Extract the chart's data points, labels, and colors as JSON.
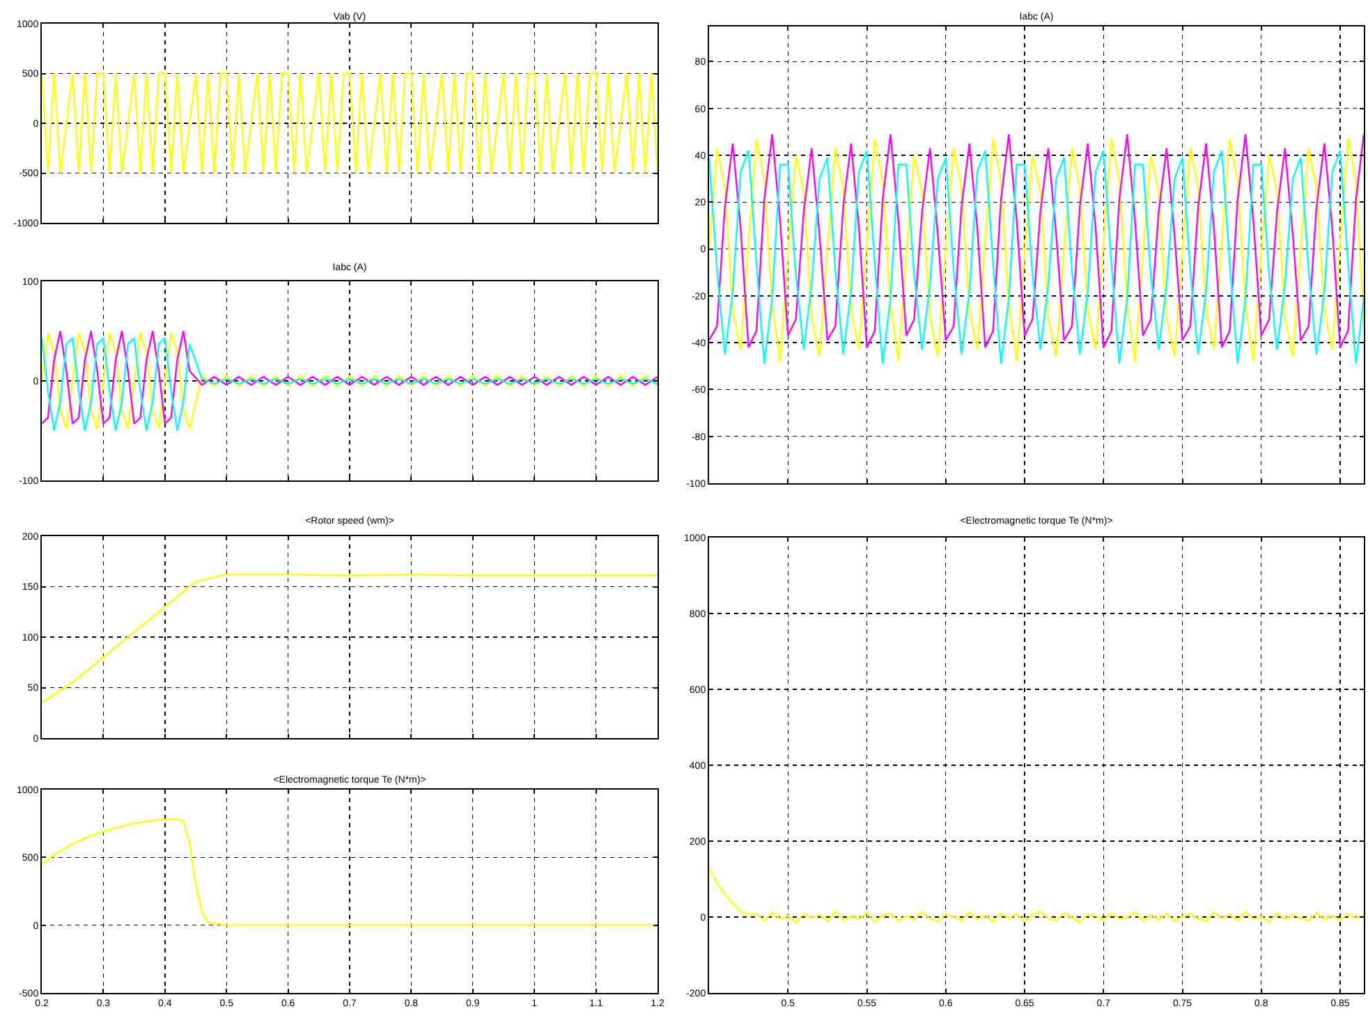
{
  "chart_data": [
    {
      "type": "line",
      "title": "Vab (V)",
      "xlim": [
        0.2,
        1.2
      ],
      "xticks": [
        0.2,
        0.3,
        0.4,
        0.5,
        0.6,
        0.7,
        0.8,
        0.9,
        1,
        1.1,
        1.2
      ],
      "ylim": [
        -1000,
        1000
      ],
      "yticks": [
        -1000,
        -500,
        0,
        500,
        1000
      ],
      "grid": true,
      "tick_labels": "y",
      "x": [
        0.2,
        0.21,
        0.22,
        0.23,
        0.24,
        0.25,
        0.26,
        0.27,
        0.28,
        0.29,
        0.3,
        0.31,
        0.32,
        0.33,
        0.34,
        0.35,
        0.36,
        0.37,
        0.38,
        0.39,
        0.4,
        0.41,
        0.42,
        0.43,
        0.44,
        0.45,
        0.46,
        0.47,
        0.48,
        0.49,
        0.5,
        0.51,
        0.52,
        0.53,
        0.54,
        0.55,
        0.56,
        0.57,
        0.58,
        0.59,
        0.6,
        0.61,
        0.62,
        0.63,
        0.64,
        0.65,
        0.66,
        0.67,
        0.68,
        0.69,
        0.7,
        0.71,
        0.72,
        0.73,
        0.74,
        0.75,
        0.76,
        0.77,
        0.78,
        0.79,
        0.8,
        0.81,
        0.82,
        0.83,
        0.84,
        0.85,
        0.86,
        0.87,
        0.88,
        0.89,
        0.9,
        0.91,
        0.92,
        0.93,
        0.94,
        0.95,
        0.96,
        0.97,
        0.98,
        0.99,
        1,
        1.01,
        1.02,
        1.03,
        1.04,
        1.05,
        1.06,
        1.07,
        1.08,
        1.09,
        1.1,
        1.11,
        1.12,
        1.13,
        1.14,
        1.15,
        1.16,
        1.17,
        1.18,
        1.19,
        1.2
      ],
      "series": [
        {
          "color": "#ffff00",
          "values": [
            500,
            -500,
            500,
            -500,
            0,
            500,
            -500,
            500,
            -500,
            500,
            500,
            -500,
            500,
            -500,
            0,
            500,
            -500,
            500,
            -500,
            500,
            500,
            -500,
            500,
            -500,
            0,
            500,
            -500,
            500,
            -500,
            500,
            500,
            -500,
            500,
            -500,
            0,
            500,
            -500,
            500,
            -500,
            500,
            500,
            -500,
            500,
            -500,
            0,
            500,
            -500,
            500,
            -500,
            500,
            500,
            -500,
            500,
            -500,
            0,
            500,
            -500,
            500,
            -500,
            500,
            500,
            -500,
            500,
            -500,
            0,
            500,
            -500,
            500,
            -500,
            500,
            500,
            -500,
            500,
            -500,
            0,
            500,
            -500,
            500,
            -500,
            500,
            500,
            -500,
            500,
            -500,
            0,
            500,
            -500,
            500,
            -500,
            500,
            500,
            -500,
            500,
            -500,
            0,
            500,
            -500,
            500,
            -500,
            500,
            -500
          ]
        }
      ]
    },
    {
      "type": "line",
      "title": "Iabc (A)",
      "xlim": [
        0.2,
        1.2
      ],
      "xticks": [
        0.2,
        0.3,
        0.4,
        0.5,
        0.6,
        0.7,
        0.8,
        0.9,
        1,
        1.1,
        1.2
      ],
      "ylim": [
        -100,
        100
      ],
      "yticks": [
        -100,
        0,
        100
      ],
      "grid": true,
      "tick_labels": "y",
      "x": [
        0.2,
        0.21,
        0.22,
        0.23,
        0.24,
        0.25,
        0.26,
        0.27,
        0.28,
        0.29,
        0.3,
        0.31,
        0.32,
        0.33,
        0.34,
        0.35,
        0.36,
        0.37,
        0.38,
        0.39,
        0.4,
        0.41,
        0.42,
        0.43,
        0.44,
        0.46,
        0.48,
        0.5,
        0.52,
        0.54,
        0.56,
        0.58,
        0.6,
        0.62,
        0.64,
        0.66,
        0.68,
        0.7,
        0.72,
        0.74,
        0.76,
        0.78,
        0.8,
        0.82,
        0.84,
        0.86,
        0.88,
        0.9,
        0.92,
        0.94,
        0.96,
        0.98,
        1,
        1.02,
        1.04,
        1.06,
        1.08,
        1.1,
        1.12,
        1.14,
        1.16,
        1.18,
        1.2
      ],
      "series": [
        {
          "color": "#ffff00",
          "values": [
            0,
            48,
            29,
            -29,
            -48,
            0,
            48,
            29,
            -29,
            -48,
            0,
            48,
            29,
            -29,
            -48,
            0,
            48,
            29,
            -29,
            -48,
            0,
            48,
            29,
            -29,
            -48,
            5,
            -5,
            5,
            -5,
            5,
            -5,
            5,
            -5,
            5,
            -5,
            5,
            -5,
            5,
            -5,
            5,
            -5,
            5,
            -5,
            5,
            -5,
            5,
            -5,
            5,
            -5,
            5,
            -5,
            5,
            -5,
            5,
            -5,
            5,
            -5,
            5,
            -5,
            5,
            -5,
            5,
            -5
          ]
        },
        {
          "color": "#ff00ff",
          "values": [
            -43,
            -37,
            21,
            50,
            10,
            -43,
            -37,
            21,
            50,
            10,
            -43,
            -37,
            21,
            50,
            10,
            -43,
            -37,
            21,
            50,
            10,
            -43,
            -37,
            21,
            50,
            10,
            -4,
            4,
            -4,
            4,
            -4,
            4,
            -4,
            4,
            -4,
            4,
            -4,
            4,
            -4,
            4,
            -4,
            4,
            -4,
            4,
            -4,
            4,
            -4,
            4,
            -4,
            4,
            -4,
            4,
            -4,
            4,
            -4,
            4,
            -4,
            4,
            -4,
            4,
            -4,
            4,
            -4,
            4
          ]
        },
        {
          "color": "#00ffff",
          "values": [
            43,
            -10,
            -50,
            -21,
            37,
            43,
            -10,
            -50,
            -21,
            37,
            43,
            -10,
            -50,
            -21,
            37,
            43,
            -10,
            -50,
            -21,
            37,
            43,
            -10,
            -50,
            -21,
            37,
            2,
            -3,
            2,
            -3,
            2,
            -3,
            2,
            -3,
            2,
            -3,
            2,
            -3,
            2,
            -3,
            2,
            -3,
            2,
            -3,
            2,
            -3,
            2,
            -3,
            2,
            -3,
            2,
            -3,
            2,
            -3,
            2,
            -3,
            2,
            -3,
            2,
            -3,
            2,
            -3,
            2,
            -3
          ]
        }
      ]
    },
    {
      "type": "line",
      "title": "<Rotor speed (wm)>",
      "xlim": [
        0.2,
        1.2
      ],
      "xticks": [
        0.2,
        0.3,
        0.4,
        0.5,
        0.6,
        0.7,
        0.8,
        0.9,
        1,
        1.1,
        1.2
      ],
      "ylim": [
        0,
        200
      ],
      "yticks": [
        0,
        50,
        100,
        150,
        200
      ],
      "grid": true,
      "tick_labels": "y",
      "x": [
        0.2,
        0.25,
        0.3,
        0.35,
        0.4,
        0.45,
        0.5,
        0.6,
        0.7,
        0.8,
        0.9,
        1,
        1.1,
        1.2
      ],
      "series": [
        {
          "color": "#ffff00",
          "values": [
            35,
            55,
            80,
            105,
            130,
            155,
            162,
            162,
            161,
            162,
            161,
            161,
            161,
            161
          ]
        }
      ]
    },
    {
      "type": "line",
      "title": "<Electromagnetic torque Te (N*m)>",
      "xlim": [
        0.2,
        1.2
      ],
      "xticks": [
        0.2,
        0.3,
        0.4,
        0.5,
        0.6,
        0.7,
        0.8,
        0.9,
        1,
        1.1,
        1.2
      ],
      "ylim": [
        -500,
        1000
      ],
      "yticks": [
        -500,
        0,
        500,
        1000
      ],
      "grid": true,
      "x": [
        0.2,
        0.22,
        0.25,
        0.28,
        0.3,
        0.33,
        0.35,
        0.38,
        0.4,
        0.42,
        0.43,
        0.44,
        0.45,
        0.46,
        0.47,
        0.5,
        0.55,
        0.6,
        0.65,
        0.7,
        0.75,
        0.8,
        0.85,
        0.9,
        0.95,
        1,
        1.05,
        1.1,
        1.15,
        1.2
      ],
      "series": [
        {
          "color": "#ffff00",
          "values": [
            450,
            520,
            600,
            660,
            690,
            730,
            750,
            770,
            780,
            780,
            770,
            600,
            300,
            100,
            20,
            0,
            0,
            0,
            0,
            0,
            0,
            0,
            0,
            0,
            0,
            0,
            0,
            0,
            0,
            0
          ]
        }
      ]
    },
    {
      "type": "line",
      "title": "Iabc (A)",
      "xlim": [
        0.45,
        0.865
      ],
      "xticks": [
        0.5,
        0.55,
        0.6,
        0.65,
        0.7,
        0.75,
        0.8,
        0.85
      ],
      "ylim": [
        -100,
        95
      ],
      "yticks": [
        -100,
        -80,
        -60,
        -40,
        -20,
        0,
        20,
        40,
        60,
        80
      ],
      "grid": true,
      "tick_labels": "y",
      "x": [
        0.45,
        0.455,
        0.46,
        0.465,
        0.47,
        0.475,
        0.48,
        0.485,
        0.49,
        0.495,
        0.5,
        0.505,
        0.51,
        0.515,
        0.52,
        0.525,
        0.53,
        0.535,
        0.54,
        0.545,
        0.55,
        0.555,
        0.56,
        0.565,
        0.57,
        0.575,
        0.58,
        0.585,
        0.59,
        0.595,
        0.6,
        0.605,
        0.61,
        0.615,
        0.62,
        0.625,
        0.63,
        0.635,
        0.64,
        0.645,
        0.65,
        0.655,
        0.66,
        0.665,
        0.67,
        0.675,
        0.68,
        0.685,
        0.69,
        0.695,
        0.7,
        0.705,
        0.71,
        0.715,
        0.72,
        0.725,
        0.73,
        0.735,
        0.74,
        0.745,
        0.75,
        0.755,
        0.76,
        0.765,
        0.77,
        0.775,
        0.78,
        0.785,
        0.79,
        0.795,
        0.8,
        0.805,
        0.81,
        0.815,
        0.82,
        0.825,
        0.83,
        0.835,
        0.84,
        0.845,
        0.85,
        0.855,
        0.86,
        0.865
      ],
      "series": [
        {
          "color": "#ffff00",
          "values": [
            0,
            43,
            26,
            -26,
            -43,
            3,
            47,
            29,
            -24,
            -48,
            -2,
            40,
            24,
            -29,
            -46,
            0,
            43,
            26,
            -26,
            -43,
            3,
            47,
            29,
            -24,
            -48,
            -2,
            40,
            24,
            -29,
            -46,
            0,
            43,
            26,
            -26,
            -43,
            3,
            47,
            29,
            -24,
            -48,
            -2,
            40,
            24,
            -29,
            -46,
            0,
            43,
            26,
            -26,
            -43,
            3,
            47,
            29,
            -24,
            -48,
            -2,
            40,
            24,
            -29,
            -46,
            0,
            43,
            26,
            -26,
            -43,
            3,
            47,
            29,
            -24,
            -48,
            -2,
            40,
            24,
            -29,
            -46,
            0,
            43,
            26,
            -26,
            -43,
            3,
            47,
            29,
            -32
          ]
        },
        {
          "color": "#ff00ff",
          "values": [
            -39,
            -33,
            18,
            45,
            9,
            -42,
            -35,
            21,
            49,
            12,
            -37,
            -30,
            16,
            43,
            6,
            -39,
            -33,
            18,
            45,
            9,
            -42,
            -35,
            21,
            49,
            12,
            -37,
            -30,
            16,
            43,
            6,
            -39,
            -33,
            18,
            45,
            9,
            -42,
            -35,
            21,
            49,
            12,
            -37,
            -30,
            16,
            43,
            6,
            -39,
            -33,
            18,
            45,
            9,
            -42,
            -35,
            21,
            49,
            12,
            -37,
            -30,
            16,
            43,
            6,
            -39,
            -33,
            18,
            45,
            9,
            -42,
            -35,
            21,
            49,
            12,
            -37,
            -30,
            16,
            43,
            6,
            -39,
            -33,
            18,
            45,
            9,
            -42,
            -35,
            21,
            49
          ]
        },
        {
          "color": "#00ffff",
          "values": [
            39,
            -9,
            -45,
            -18,
            33,
            42,
            -6,
            -49,
            -21,
            36,
            36,
            -11,
            -43,
            -15,
            30,
            39,
            -9,
            -45,
            -18,
            33,
            42,
            -6,
            -49,
            -21,
            36,
            36,
            -11,
            -43,
            -15,
            30,
            39,
            -9,
            -45,
            -18,
            33,
            42,
            -6,
            -49,
            -21,
            36,
            36,
            -11,
            -43,
            -15,
            30,
            39,
            -9,
            -45,
            -18,
            33,
            42,
            -6,
            -49,
            -21,
            36,
            36,
            -11,
            -43,
            -15,
            30,
            39,
            -9,
            -45,
            -18,
            33,
            42,
            -6,
            -49,
            -21,
            36,
            36,
            -11,
            -43,
            -15,
            30,
            39,
            -9,
            -45,
            -18,
            33,
            42,
            -6,
            -49,
            -21
          ]
        }
      ]
    },
    {
      "type": "line",
      "title": "<Electromagnetic torque Te (N*m)>",
      "xlim": [
        0.45,
        0.865
      ],
      "xticks": [
        0.5,
        0.55,
        0.6,
        0.65,
        0.7,
        0.75,
        0.8,
        0.85
      ],
      "ylim": [
        -200,
        1000
      ],
      "yticks": [
        -200,
        0,
        200,
        400,
        600,
        800,
        1000
      ],
      "grid": true,
      "x": [
        0.45,
        0.455,
        0.46,
        0.465,
        0.47,
        0.475,
        0.48,
        0.485,
        0.49,
        0.495,
        0.5,
        0.505,
        0.51,
        0.515,
        0.52,
        0.525,
        0.53,
        0.535,
        0.54,
        0.545,
        0.55,
        0.555,
        0.56,
        0.565,
        0.57,
        0.575,
        0.58,
        0.585,
        0.59,
        0.595,
        0.6,
        0.605,
        0.61,
        0.615,
        0.62,
        0.625,
        0.63,
        0.635,
        0.64,
        0.645,
        0.65,
        0.655,
        0.66,
        0.665,
        0.67,
        0.675,
        0.68,
        0.685,
        0.69,
        0.695,
        0.7,
        0.705,
        0.71,
        0.715,
        0.72,
        0.725,
        0.73,
        0.735,
        0.74,
        0.745,
        0.75,
        0.755,
        0.76,
        0.765,
        0.77,
        0.775,
        0.78,
        0.785,
        0.79,
        0.795,
        0.8,
        0.805,
        0.81,
        0.815,
        0.82,
        0.825,
        0.83,
        0.835,
        0.84,
        0.845,
        0.85,
        0.855,
        0.86,
        0.865
      ],
      "series": [
        {
          "color": "#ffff00",
          "values": [
            130,
            90,
            60,
            35,
            15,
            5,
            8,
            -10,
            12,
            -5,
            3,
            -15,
            10,
            -2,
            6,
            -12,
            14,
            -8,
            2,
            -6,
            11,
            -14,
            5,
            9,
            -10,
            3,
            -7,
            13,
            -4,
            -11,
            7,
            0,
            -9,
            12,
            -6,
            4,
            -13,
            9,
            -3,
            8,
            -12,
            6,
            15,
            -5,
            -9,
            10,
            -2,
            -14,
            7,
            3,
            -8,
            11,
            -6,
            -1,
            13,
            -10,
            5,
            -7,
            9,
            -12,
            2,
            8,
            -4,
            -11,
            12,
            -3,
            6,
            -9,
            14,
            -6,
            1,
            -13,
            10,
            -5,
            7,
            -2,
            -10,
            11,
            -7,
            4,
            -8,
            9,
            -3,
            5
          ]
        }
      ]
    }
  ]
}
